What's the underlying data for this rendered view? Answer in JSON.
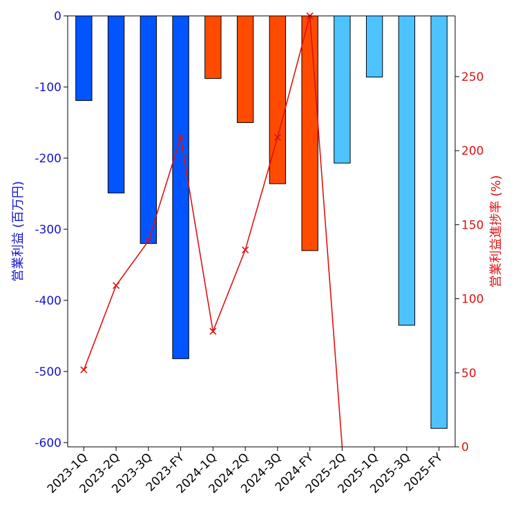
{
  "chart_data": {
    "type": "bar",
    "categories": [
      "2023-1Q",
      "2023-2Q",
      "2023-3Q",
      "2023-FY",
      "2024-1Q",
      "2024-2Q",
      "2024-3Q",
      "2024-FY",
      "2025-2Q",
      "2025-1Q",
      "2025-3Q",
      "2025-FY"
    ],
    "series": [
      {
        "name": "",
        "axis": "left",
        "kind": "bar",
        "values": [
          -119,
          -249,
          -320,
          -482,
          -88,
          -150,
          -236,
          -330,
          -207,
          -86,
          -435,
          -580
        ],
        "colors": [
          "#0055ff",
          "#0055ff",
          "#0055ff",
          "#0055ff",
          "#ff4b00",
          "#ff4b00",
          "#ff4b00",
          "#ff4b00",
          "#4dc4ff",
          "#4dc4ff",
          "#4dc4ff",
          "#4dc4ff"
        ]
      },
      {
        "name": "",
        "axis": "right",
        "kind": "line",
        "marker": "x",
        "color": "#e01010",
        "values": [
          52,
          109,
          139,
          209,
          78,
          133,
          209,
          291,
          0,
          null,
          null,
          null
        ]
      }
    ],
    "ylabel_left": "営業利益 (百万円)",
    "ylabel_right": "営業利益進捗率 (%)",
    "xlabel": "",
    "title": "",
    "ylim_left": [
      -606,
      0
    ],
    "ylim_right": [
      0,
      291
    ],
    "yticks_left": [
      0,
      -100,
      -200,
      -300,
      -400,
      -500,
      -600
    ],
    "yticks_right": [
      0,
      50,
      100,
      150,
      200,
      250
    ],
    "grid": false,
    "legend": "none"
  }
}
